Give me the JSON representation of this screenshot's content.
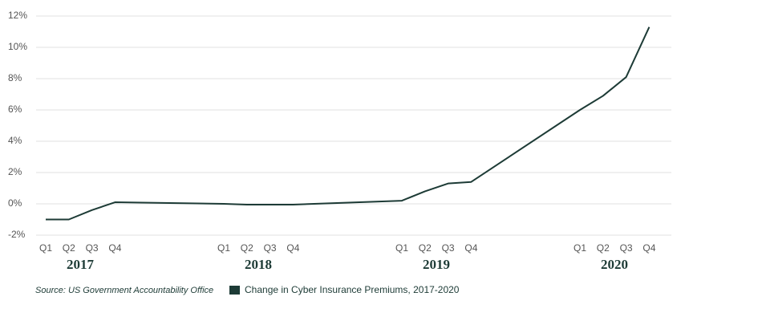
{
  "chart_data": {
    "type": "line",
    "categories": [
      "Q1",
      "Q2",
      "Q3",
      "Q4",
      "Q1",
      "Q2",
      "Q3",
      "Q4",
      "Q1",
      "Q2",
      "Q3",
      "Q4",
      "Q1",
      "Q2",
      "Q3",
      "Q4"
    ],
    "groups": [
      "2017",
      "2018",
      "2019",
      "2020"
    ],
    "series": [
      {
        "name": "Change in Cyber Insurance Premiums, 2017-2020",
        "color": "#1d3b36",
        "values": [
          -1,
          -1,
          -0.4,
          0.1,
          0,
          -0.05,
          -0.05,
          -0.05,
          0.2,
          0.8,
          1.3,
          1.4,
          6.0,
          6.9,
          8.1,
          11.3
        ]
      }
    ],
    "ylim": [
      -2,
      12
    ],
    "yticks": [
      {
        "value": -2,
        "label": "-2%"
      },
      {
        "value": 0,
        "label": "0%"
      },
      {
        "value": 2,
        "label": "2%"
      },
      {
        "value": 4,
        "label": "4%"
      },
      {
        "value": 6,
        "label": "6%"
      },
      {
        "value": 8,
        "label": "8%"
      },
      {
        "value": 10,
        "label": "10%"
      },
      {
        "value": 12,
        "label": "12%"
      }
    ],
    "grid": true,
    "source": "Source: US Government Accountability Office"
  }
}
